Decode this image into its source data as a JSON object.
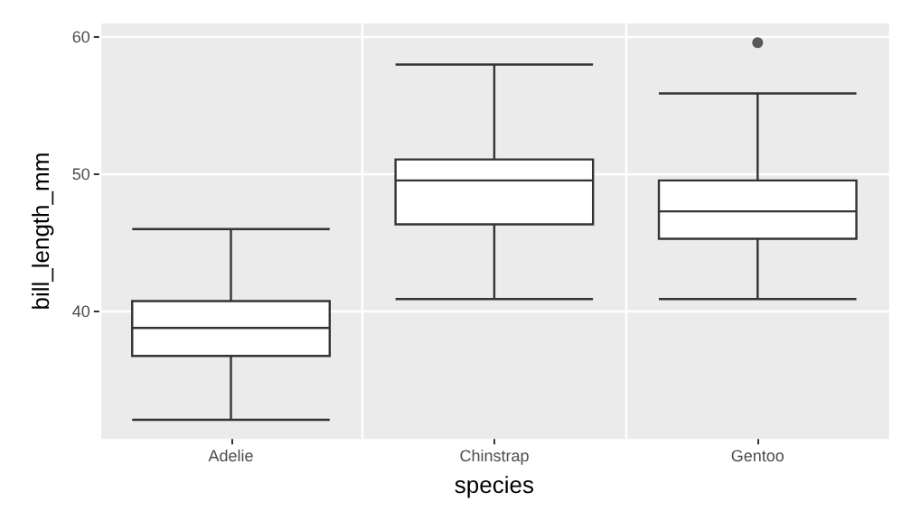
{
  "chart_data": {
    "type": "box",
    "xlabel": "species",
    "ylabel": "bill_length_mm",
    "categories": [
      "Adelie",
      "Chinstrap",
      "Gentoo"
    ],
    "boxes": [
      {
        "low": 32.1,
        "q1": 36.75,
        "median": 38.8,
        "q3": 40.75,
        "high": 46.0
      },
      {
        "low": 40.9,
        "q1": 46.35,
        "median": 49.55,
        "q3": 51.08,
        "high": 58.0
      },
      {
        "low": 40.9,
        "q1": 45.3,
        "median": 47.3,
        "q3": 49.55,
        "high": 55.9,
        "outliers": [
          59.6
        ]
      }
    ],
    "color": "#ffffff",
    "ylim": [
      30.7,
      61.0
    ],
    "yticks": [
      40,
      50,
      60
    ],
    "grid": true
  }
}
